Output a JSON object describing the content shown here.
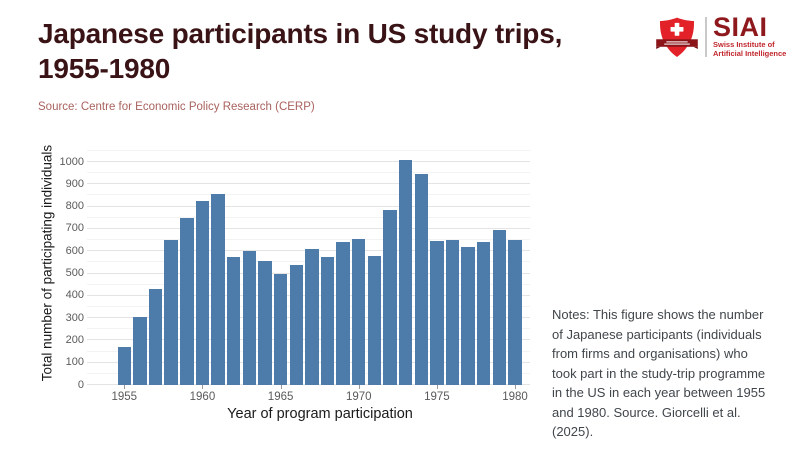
{
  "header": {
    "title": "Japanese participants in US study trips, 1955-1980",
    "source": "Source: Centre for Economic Policy Research (CERP)"
  },
  "logo": {
    "wordmark": "SIAI",
    "subtitle_line1": "Swiss Institute of",
    "subtitle_line2": "Artificial Intelligence",
    "colors": {
      "shield_red": "#e32128",
      "banner_dark_red": "#8c1519",
      "wordmark_red": "#8e191d",
      "subtitle_red": "#c1272d"
    }
  },
  "chart_data": {
    "type": "bar",
    "title": "",
    "xlabel": "Year of program participation",
    "ylabel": "Total number of participating individuals",
    "x": [
      1955,
      1956,
      1957,
      1958,
      1959,
      1960,
      1961,
      1962,
      1963,
      1964,
      1965,
      1966,
      1967,
      1968,
      1969,
      1970,
      1971,
      1972,
      1973,
      1974,
      1975,
      1976,
      1977,
      1978,
      1979,
      1980
    ],
    "values": [
      170,
      305,
      430,
      650,
      750,
      825,
      855,
      575,
      600,
      555,
      500,
      540,
      610,
      575,
      640,
      655,
      580,
      785,
      1010,
      945,
      645,
      650,
      620,
      640,
      695,
      650
    ],
    "ylim": [
      0,
      1000
    ],
    "yticks": [
      0,
      100,
      200,
      300,
      400,
      500,
      600,
      700,
      800,
      900,
      1000
    ],
    "xticks": [
      1955,
      1960,
      1965,
      1970,
      1975,
      1980
    ],
    "grid": true,
    "legend": "none",
    "bar_color": "#4d7cab"
  },
  "notes": {
    "text": "Notes: This figure shows the number of Japanese participants (individuals from firms and organisations) who took part in the study-trip programme in the US in each year between 1955 and 1980. Source. Giorcelli et al. (2025)."
  }
}
